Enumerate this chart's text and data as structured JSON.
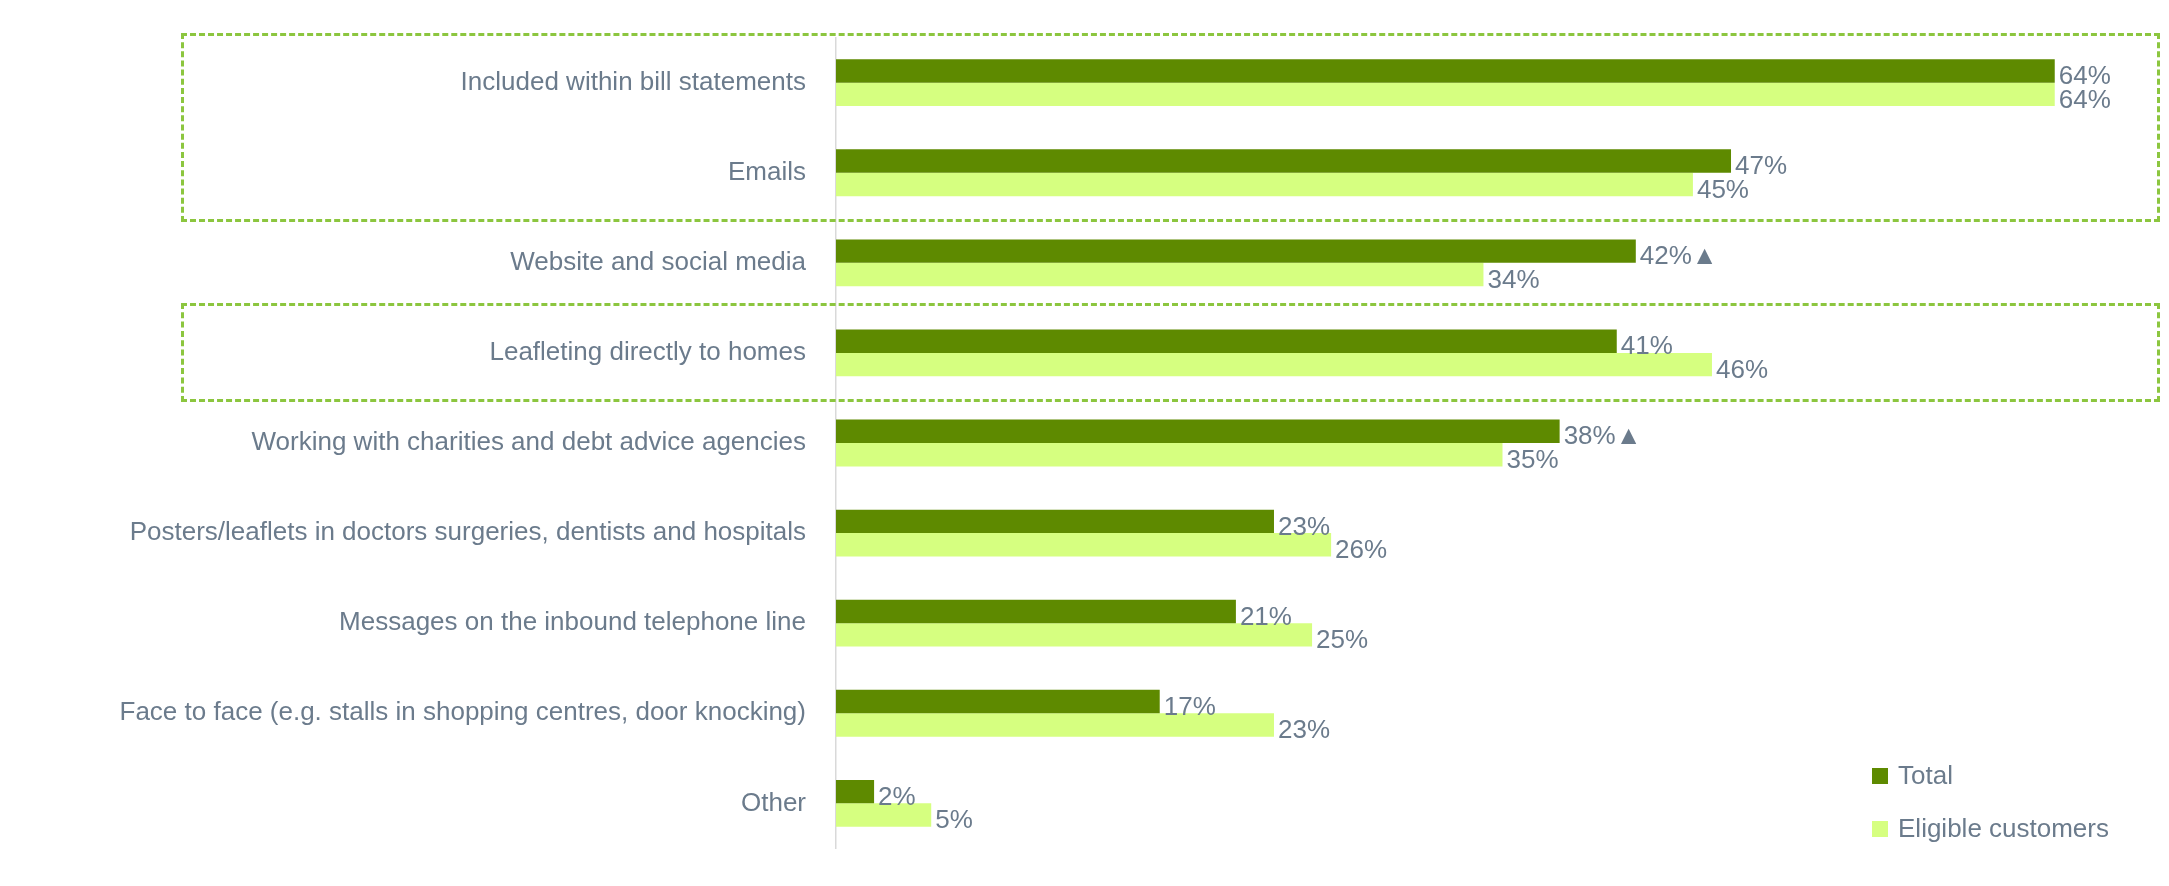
{
  "chart_data": {
    "type": "bar",
    "orientation": "horizontal",
    "categories": [
      "Included within bill statements",
      "Emails",
      "Website and social media",
      "Leafleting directly to homes",
      "Working with charities and debt advice agencies",
      "Posters/leaflets in doctors surgeries, dentists and hospitals",
      "Messages on the inbound telephone line",
      "Face to face (e.g. stalls in shopping centres, door knocking)",
      "Other"
    ],
    "series": [
      {
        "name": "Total",
        "color": "#5e8a00",
        "values": [
          64,
          47,
          42,
          41,
          38,
          23,
          21,
          17,
          2
        ],
        "value_labels": [
          "64%",
          "47%",
          "42%▲",
          "41%",
          "38%▲",
          "23%",
          "21%",
          "17%",
          "2%"
        ]
      },
      {
        "name": "Eligible customers",
        "color": "#d6ff80",
        "values": [
          64,
          45,
          34,
          46,
          35,
          26,
          25,
          23,
          5
        ],
        "value_labels": [
          "64%",
          "45%",
          "34%",
          "46%",
          "35%",
          "26%",
          "25%",
          "23%",
          "5%"
        ]
      }
    ],
    "legend": "bottom right"
  }
}
